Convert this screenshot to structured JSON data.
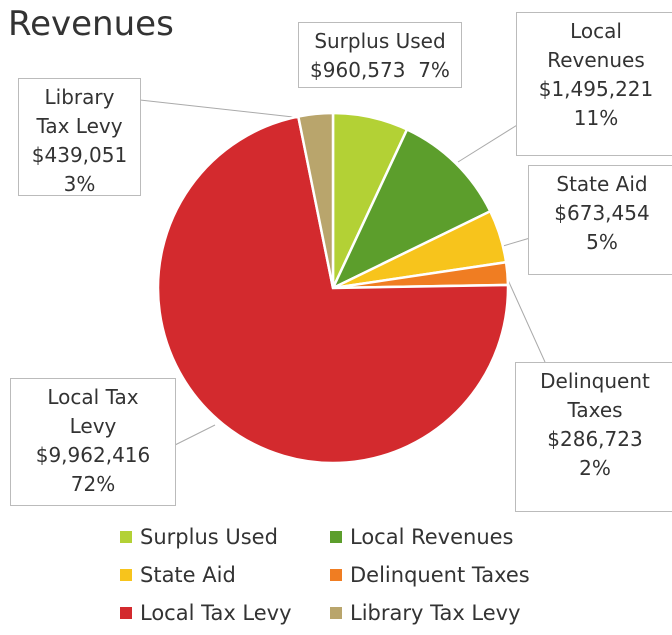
{
  "chart_data": {
    "type": "pie",
    "title": "Revenues",
    "categories": [
      "Surplus Used",
      "Local Revenues",
      "State Aid",
      "Delinquent Taxes",
      "Local Tax Levy",
      "Library Tax Levy"
    ],
    "values": [
      960573,
      1495221,
      673454,
      286723,
      9962416,
      439051
    ],
    "value_labels": [
      "$960,573",
      "$1,495,221",
      "$673,454",
      "$286,723",
      "$9,962,416",
      "$439,051"
    ],
    "percents": [
      7,
      11,
      5,
      2,
      72,
      3
    ],
    "percent_labels": [
      "7%",
      "11%",
      "5%",
      "2%",
      "72%",
      "3%"
    ],
    "colors": [
      "#b3d135",
      "#5c9e2c",
      "#f7c41c",
      "#f07d22",
      "#d32a2e",
      "#b9a56c"
    ],
    "legend": "bottom"
  }
}
